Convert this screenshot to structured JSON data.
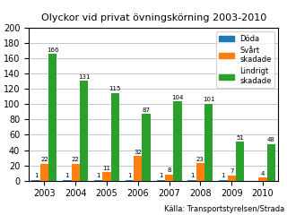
{
  "chart_data": {
    "type": "bar",
    "title": "Olyckor vid privat övningskörning 2003-2010",
    "categories": [
      "2003",
      "2004",
      "2005",
      "2006",
      "2007",
      "2008",
      "2009",
      "2010"
    ],
    "series": [
      {
        "name": "Döda",
        "values": [
          1,
          1,
          1,
          1,
          1,
          1,
          1,
          0
        ],
        "value_labels": [
          "1",
          "1",
          "1",
          "1",
          "1",
          "1",
          "1",
          null
        ]
      },
      {
        "name": "Svårt\nskadade",
        "values": [
          22,
          22,
          11,
          32,
          8,
          23,
          7,
          4
        ]
      },
      {
        "name": "Lindrigt\nskadade",
        "values": [
          166,
          131,
          115,
          87,
          104,
          101,
          51,
          48
        ]
      }
    ],
    "ylim": [
      0,
      200
    ],
    "yticks": [
      0,
      20,
      40,
      60,
      80,
      100,
      120,
      140,
      160,
      180,
      200
    ],
    "grid": true,
    "legend": "upper right",
    "data_labels": true,
    "annotations": [
      "Källa: Transportstyrelsen/Strada"
    ]
  }
}
